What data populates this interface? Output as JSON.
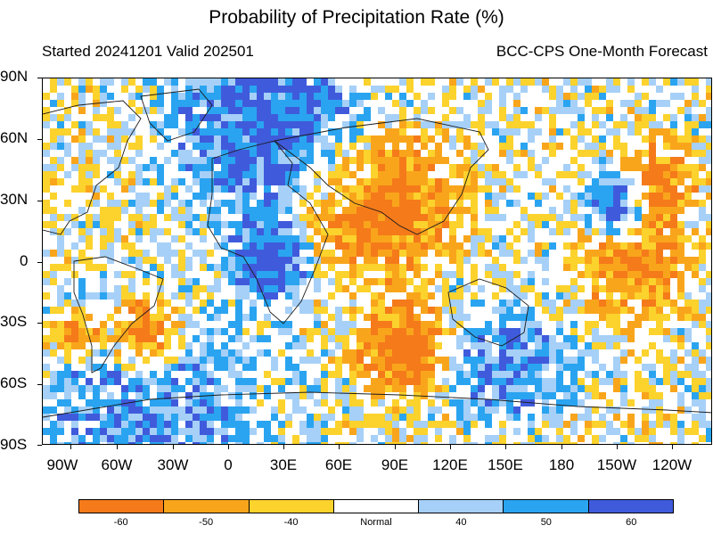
{
  "header": {
    "title": "Probability of Precipitation Rate (%)",
    "started": "Started 20241201  Valid 202501",
    "model": "BCC-CPS One-Month Forecast"
  },
  "map": {
    "lat_labels": [
      "90N",
      "60N",
      "30N",
      "0",
      "30S",
      "60S",
      "90S"
    ],
    "lon_labels": [
      "90W",
      "60W",
      "30W",
      "0",
      "30E",
      "60E",
      "90E",
      "120E",
      "150E",
      "180",
      "150W",
      "120W"
    ]
  },
  "legend": {
    "labels": [
      "-60",
      "-50",
      "-40",
      "Normal",
      "40",
      "50",
      "60"
    ],
    "colors": [
      "#f57a1a",
      "#f9a51b",
      "#fcd22d",
      "#ffffff",
      "#a6d0f7",
      "#2aa4f0",
      "#3f5bdc"
    ]
  }
}
